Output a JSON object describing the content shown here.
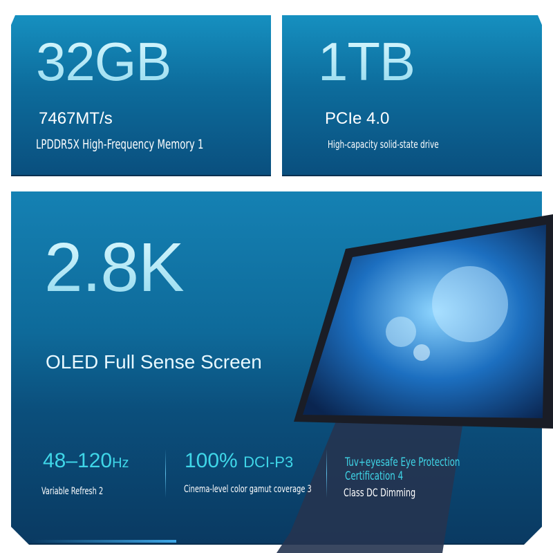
{
  "memory": {
    "capacity": "32GB",
    "speed": "7467MT/s",
    "description": "LPDDR5X High-Frequency Memory 1"
  },
  "storage": {
    "capacity": "1TB",
    "interface": "PCIe 4.0",
    "description": "High-capacity solid-state drive"
  },
  "display": {
    "resolution": "2.8K",
    "description": "OLED Full Sense Screen",
    "refresh": {
      "value": "48–120",
      "unit": "Hz",
      "label": "Variable Refresh 2"
    },
    "gamut": {
      "value": "100%",
      "unit": "DCI-P3",
      "label": "Cinema-level color gamut coverage 3"
    },
    "eye": {
      "title": "Tuv+eyesafe Eye Protection Certification 4",
      "label": "Class DC Dimming"
    }
  },
  "colors": {
    "panel": "#0e6a9a",
    "accent": "#3fd6e8",
    "headline": "#bff0fb"
  }
}
